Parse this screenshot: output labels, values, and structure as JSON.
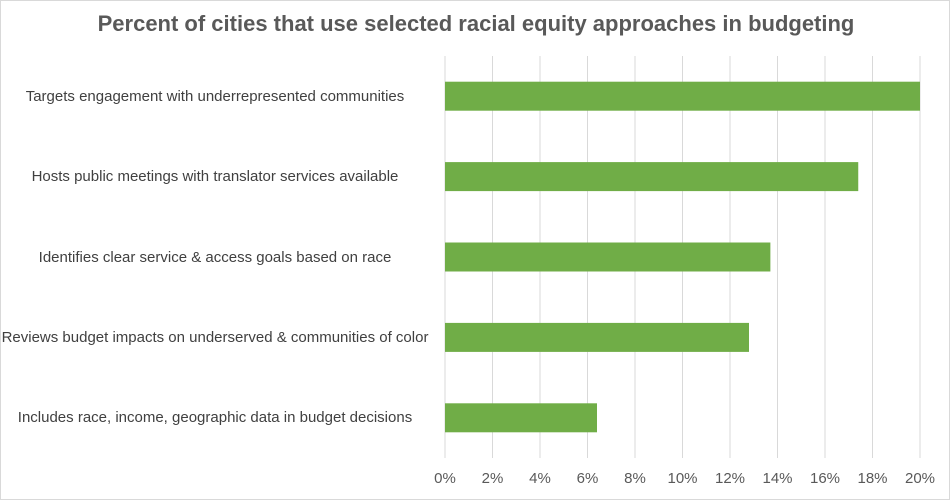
{
  "chart_data": {
    "type": "bar",
    "orientation": "horizontal",
    "title": "Percent of cities that use selected racial equity approaches in budgeting",
    "categories": [
      "Targets engagement with underrepresented communities",
      "Hosts public meetings with translator services available",
      "Identifies clear service & access goals based on race",
      "Reviews budget impacts on underserved & communities of color",
      "Includes race, income, geographic data in budget decisions"
    ],
    "values": [
      20.0,
      17.4,
      13.7,
      12.8,
      6.4
    ],
    "xlim": [
      0,
      20
    ],
    "xticks": [
      "0%",
      "2%",
      "4%",
      "6%",
      "8%",
      "10%",
      "12%",
      "14%",
      "16%",
      "18%",
      "20%"
    ],
    "grid": true,
    "legend": "none",
    "colors": {
      "bar": "#70ad47",
      "grid": "#d9d9d9",
      "text": "#595959"
    }
  }
}
